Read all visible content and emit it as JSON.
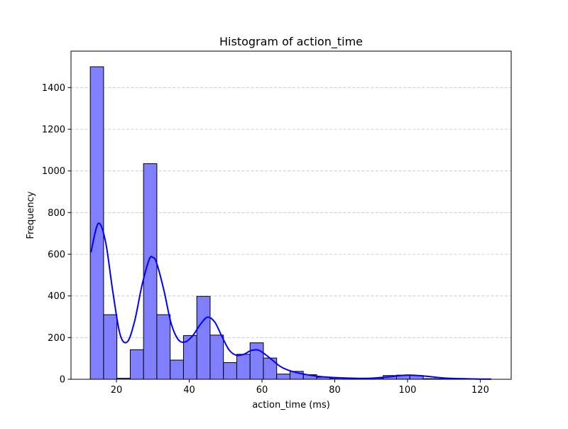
{
  "chart_data": {
    "type": "histogram",
    "title": "Histogram of action_time",
    "xlabel": "action_time (ms)",
    "ylabel": "Frequency",
    "xlim": [
      7.5,
      128.5
    ],
    "ylim": [
      0,
      1575
    ],
    "xticks": [
      20,
      40,
      60,
      80,
      100,
      120
    ],
    "yticks": [
      0,
      200,
      400,
      600,
      800,
      1000,
      1200,
      1400
    ],
    "grid": "y-dashed",
    "legend": "none",
    "bins": {
      "edges": [
        12.8,
        16.46,
        20.12,
        23.78,
        27.44,
        31.1,
        34.76,
        38.42,
        42.08,
        45.74,
        49.4,
        53.06,
        56.72,
        60.38,
        64.04,
        67.7,
        71.36,
        75.02,
        78.68,
        82.34,
        86.0,
        89.66,
        93.32,
        96.98,
        100.64,
        104.3,
        107.96,
        111.62,
        115.28,
        118.94,
        122.6
      ],
      "counts": [
        1500,
        310,
        5,
        142,
        1035,
        310,
        92,
        210,
        398,
        212,
        80,
        120,
        175,
        102,
        25,
        38,
        22,
        10,
        5,
        5,
        3,
        5,
        18,
        20,
        18,
        3,
        2,
        1,
        1,
        1
      ]
    },
    "kde": {
      "x": [
        13,
        15,
        17,
        19,
        21,
        23,
        25,
        27,
        29,
        30,
        31,
        33,
        35,
        37,
        39,
        41,
        43,
        45,
        47,
        49,
        51,
        53,
        55,
        57,
        59,
        61,
        63,
        65,
        67,
        70,
        75,
        80,
        85,
        90,
        95,
        100,
        105,
        110,
        115,
        120,
        123
      ],
      "y": [
        610,
        748,
        660,
        420,
        215,
        180,
        280,
        450,
        575,
        585,
        560,
        430,
        270,
        190,
        180,
        210,
        262,
        298,
        275,
        205,
        140,
        115,
        120,
        138,
        140,
        118,
        90,
        62,
        45,
        30,
        15,
        8,
        5,
        5,
        12,
        20,
        15,
        6,
        3,
        1,
        1
      ]
    },
    "colors": {
      "bar_fill": "#8080ff",
      "bar_edge": "#000000",
      "kde_line": "#0000ff",
      "grid": "#c4c4c4"
    }
  }
}
